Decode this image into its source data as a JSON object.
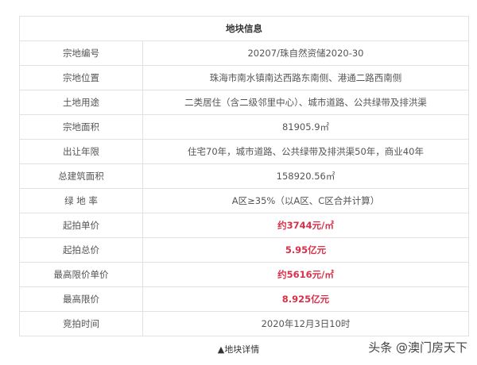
{
  "table": {
    "title": "地块信息",
    "rows": [
      {
        "label": "宗地编号",
        "value": "20207/珠自然资储2020-30",
        "highlight": false
      },
      {
        "label": "宗地位置",
        "value": "珠海市南水镇南达西路东南侧、港通二路西南侧",
        "highlight": false
      },
      {
        "label": "土地用途",
        "value": "二类居住（含二级邻里中心）、城市道路、公共绿带及排洪渠",
        "highlight": false
      },
      {
        "label": "宗地面积",
        "value": "81905.9㎡",
        "highlight": false
      },
      {
        "label": "出让年限",
        "value": "住宅70年，城市道路、公共绿带及排洪渠50年，商业40年",
        "highlight": false
      },
      {
        "label": "总建筑面积",
        "value": "158920.56㎡",
        "highlight": false
      },
      {
        "label": "绿 地 率",
        "value": "A区≥35%（以A区、C区合并计算）",
        "highlight": false
      },
      {
        "label": "起拍单价",
        "value": "约3744元/㎡",
        "highlight": true
      },
      {
        "label": "起拍总价",
        "value": "5.95亿元",
        "highlight": true
      },
      {
        "label": "最高限价单价",
        "value": "约5616元/㎡",
        "highlight": true
      },
      {
        "label": "最高限价",
        "value": "8.925亿元",
        "highlight": true
      },
      {
        "label": "竞拍时间",
        "value": "2020年12月3日10时",
        "highlight": false
      }
    ]
  },
  "caption": "▲地块详情",
  "watermark": "头条 @澳门房天下",
  "colors": {
    "accent_red": "#d9304a",
    "border": "#e2e2e2"
  }
}
